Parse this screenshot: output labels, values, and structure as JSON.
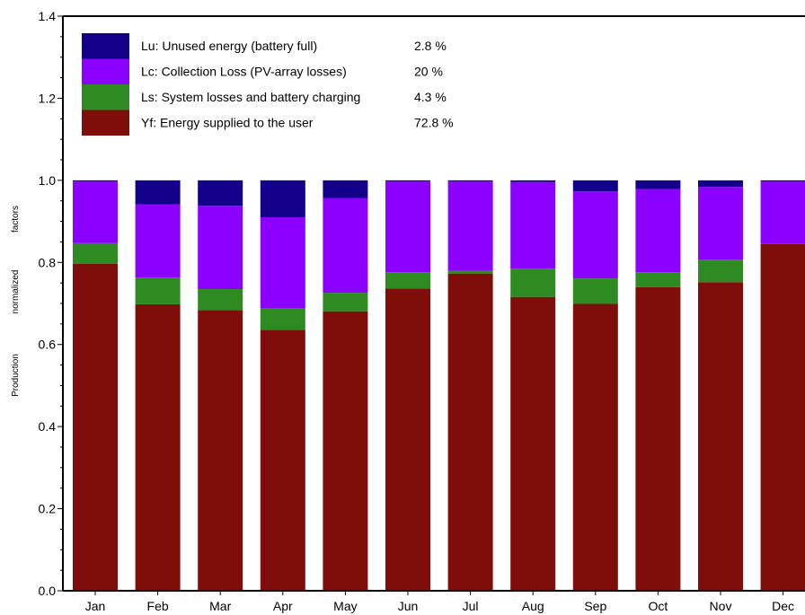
{
  "chart_data": {
    "type": "bar",
    "stacked": true,
    "categories": [
      "Jan",
      "Feb",
      "Mar",
      "Apr",
      "May",
      "Jun",
      "Jul",
      "Aug",
      "Sep",
      "Oct",
      "Nov",
      "Dec"
    ],
    "ylabel_words": [
      "Production",
      "normalized",
      "factors"
    ],
    "ylim": [
      0,
      1.4
    ],
    "yticks": [
      "0.0",
      "0.2",
      "0.4",
      "0.6",
      "0.8",
      "1.0",
      "1.2",
      "1.4"
    ],
    "legend_position": "top-left",
    "series": [
      {
        "key": "Yf",
        "name": "Yf: Energy supplied to the user",
        "share": "72.8 %",
        "color": "#7f0e0a",
        "values": [
          0.797,
          0.698,
          0.684,
          0.636,
          0.681,
          0.736,
          0.773,
          0.716,
          0.699,
          0.74,
          0.752,
          0.845
        ]
      },
      {
        "key": "Ls",
        "name": "Ls: System losses and battery charging",
        "share": "4.3 %",
        "color": "#2e8b22",
        "values": [
          0.05,
          0.065,
          0.051,
          0.053,
          0.045,
          0.04,
          0.007,
          0.069,
          0.062,
          0.036,
          0.055,
          0.0
        ]
      },
      {
        "key": "Lc",
        "name": "Lc: Collection Loss (PV-array losses)",
        "share": "20 %",
        "color": "#8b00ff",
        "values": [
          0.15,
          0.178,
          0.203,
          0.221,
          0.231,
          0.221,
          0.217,
          0.211,
          0.212,
          0.203,
          0.177,
          0.152
        ]
      },
      {
        "key": "Lu",
        "name": "Lu: Unused energy (battery full)",
        "share": "2.8 %",
        "color": "#12008a",
        "values": [
          0.003,
          0.059,
          0.062,
          0.09,
          0.043,
          0.003,
          0.003,
          0.004,
          0.027,
          0.021,
          0.016,
          0.003
        ]
      }
    ]
  }
}
